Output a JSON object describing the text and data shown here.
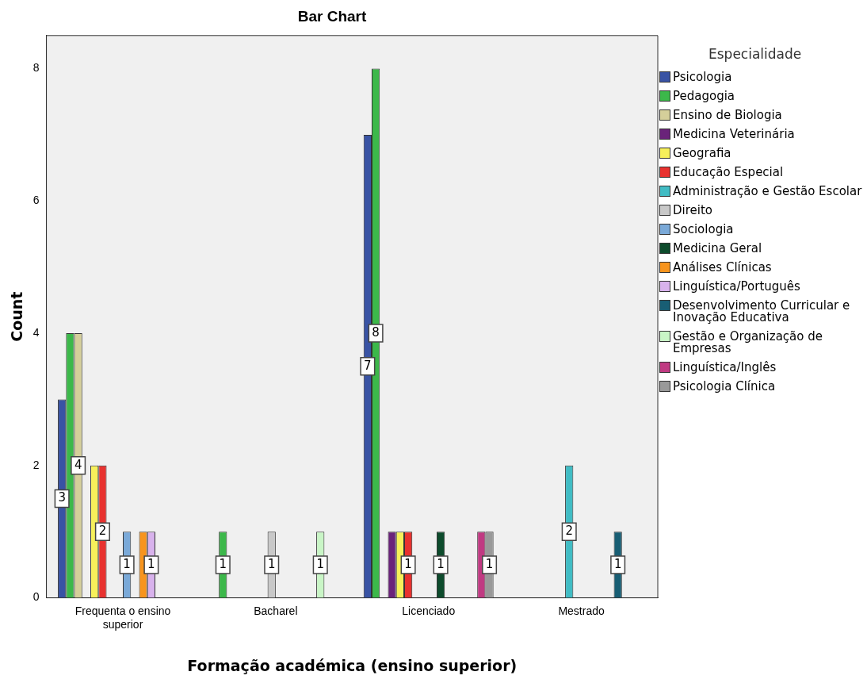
{
  "chart_data": {
    "type": "bar",
    "title": "Bar Chart",
    "xlabel": "Formação académica (ensino superior)",
    "ylabel": "Count",
    "legend_title": "Especialidade",
    "legend": "right",
    "grid": false,
    "categories": [
      "Frequenta o ensino superior",
      "Bacharel",
      "Licenciado",
      "Mestrado"
    ],
    "ylim": [
      0,
      8.5
    ],
    "yticks": [
      0,
      2,
      4,
      6,
      8
    ],
    "series": [
      {
        "name": "Psicologia",
        "color": "#3953a4",
        "values": [
          3,
          null,
          7,
          null
        ],
        "value_labels": [
          "3",
          null,
          "7",
          null
        ]
      },
      {
        "name": "Pedagogia",
        "color": "#3cb84a",
        "values": [
          4,
          1,
          8,
          null
        ],
        "value_labels": [
          null,
          "1",
          "8",
          null
        ]
      },
      {
        "name": "Ensino de Biologia",
        "color": "#d5cf9a",
        "values": [
          4,
          null,
          null,
          null
        ],
        "value_labels": [
          "4",
          null,
          null,
          null
        ]
      },
      {
        "name": "Medicina Veterinária",
        "color": "#6a237a",
        "values": [
          null,
          null,
          1,
          null
        ],
        "value_labels": [
          null,
          null,
          null,
          null
        ]
      },
      {
        "name": "Geografia",
        "color": "#f7f05a",
        "values": [
          2,
          null,
          1,
          null
        ],
        "value_labels": [
          null,
          null,
          null,
          null
        ]
      },
      {
        "name": "Educação Especial",
        "color": "#e8322f",
        "values": [
          2,
          null,
          1,
          null
        ],
        "value_labels": [
          "2",
          null,
          "1",
          null
        ]
      },
      {
        "name": "Administração e Gestão Escolar",
        "color": "#41bcc4",
        "values": [
          null,
          null,
          null,
          2
        ],
        "value_labels": [
          null,
          null,
          null,
          "2"
        ]
      },
      {
        "name": "Direito",
        "color": "#c8c8c8",
        "values": [
          null,
          1,
          null,
          null
        ],
        "value_labels": [
          null,
          "1",
          null,
          null
        ]
      },
      {
        "name": "Sociologia",
        "color": "#7aa9d8",
        "values": [
          1,
          null,
          null,
          null
        ],
        "value_labels": [
          "1",
          null,
          null,
          null
        ]
      },
      {
        "name": "Medicina Geral",
        "color": "#0d4b2c",
        "values": [
          null,
          null,
          1,
          null
        ],
        "value_labels": [
          null,
          null,
          "1",
          null
        ]
      },
      {
        "name": "Análises Clínicas",
        "color": "#f7941d",
        "values": [
          1,
          null,
          null,
          null
        ],
        "value_labels": [
          null,
          null,
          null,
          null
        ]
      },
      {
        "name": "Linguística/Português",
        "color": "#d8b2ec",
        "values": [
          1,
          null,
          null,
          null
        ],
        "value_labels": [
          "1",
          null,
          null,
          null
        ]
      },
      {
        "name": "Desenvolvimento Curricular e Inovação Educativa",
        "color": "#185e74",
        "values": [
          null,
          null,
          null,
          1
        ],
        "value_labels": [
          null,
          null,
          null,
          "1"
        ]
      },
      {
        "name": "Gestão e Organização de Empresas",
        "color": "#c9f5c6",
        "values": [
          null,
          1,
          null,
          null
        ],
        "value_labels": [
          null,
          "1",
          null,
          null
        ]
      },
      {
        "name": "Linguística/Inglês",
        "color": "#c03a82",
        "values": [
          null,
          null,
          1,
          null
        ],
        "value_labels": [
          null,
          null,
          null,
          null
        ]
      },
      {
        "name": "Psicologia Clínica",
        "color": "#999999",
        "values": [
          null,
          null,
          1,
          null
        ],
        "value_labels": [
          null,
          null,
          "1",
          null
        ]
      }
    ]
  }
}
